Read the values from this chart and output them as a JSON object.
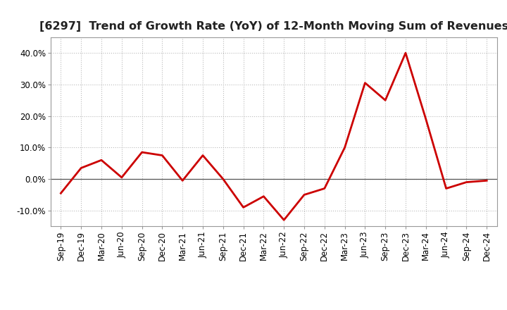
{
  "title": "[6297]  Trend of Growth Rate (YoY) of 12-Month Moving Sum of Revenues",
  "x_labels": [
    "Sep-19",
    "Dec-19",
    "Mar-20",
    "Jun-20",
    "Sep-20",
    "Dec-20",
    "Mar-21",
    "Jun-21",
    "Sep-21",
    "Dec-21",
    "Mar-22",
    "Jun-22",
    "Sep-22",
    "Dec-22",
    "Mar-23",
    "Jun-23",
    "Sep-23",
    "Dec-23",
    "Mar-24",
    "Jun-24",
    "Sep-24",
    "Dec-24"
  ],
  "y_values": [
    -4.5,
    3.5,
    6.0,
    0.5,
    8.5,
    7.5,
    -0.5,
    7.5,
    0.0,
    -9.0,
    -5.5,
    -13.0,
    -5.0,
    -3.0,
    10.0,
    30.5,
    25.0,
    40.0,
    19.0,
    -3.0,
    -1.0,
    -0.5
  ],
  "line_color": "#cc0000",
  "line_width": 2.0,
  "ylim": [
    -15,
    45
  ],
  "yticks": [
    -10.0,
    0.0,
    10.0,
    20.0,
    30.0,
    40.0
  ],
  "ytick_labels": [
    "-10.0%",
    "0.0%",
    "10.0%",
    "20.0%",
    "30.0%",
    "40.0%"
  ],
  "background_color": "#ffffff",
  "grid_color": "#bbbbbb",
  "title_fontsize": 11.5,
  "tick_fontsize": 8.5
}
